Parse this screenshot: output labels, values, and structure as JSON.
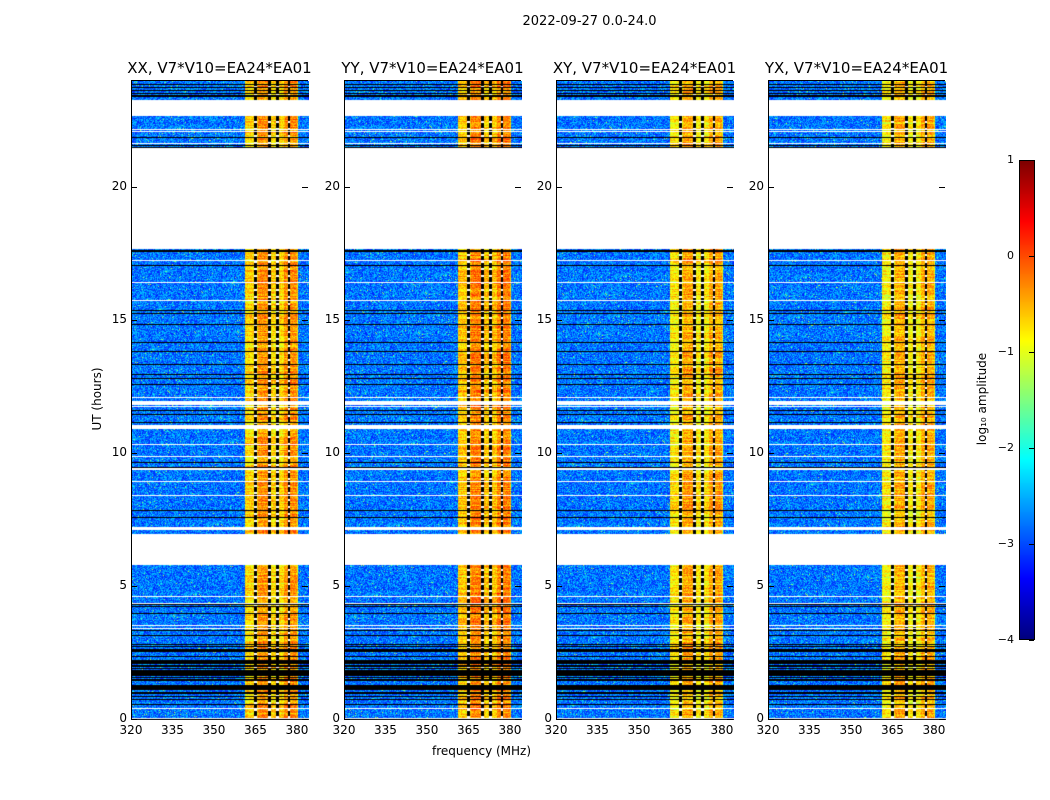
{
  "chart_data": {
    "type": "heatmap",
    "suptitle": "2022-09-27 0.0-24.0",
    "panels": [
      {
        "title": "XX, V7*V10=EA24*EA01",
        "band_level": -0.6
      },
      {
        "title": "YY, V7*V10=EA24*EA01",
        "band_level": -0.5
      },
      {
        "title": "XY, V7*V10=EA24*EA01",
        "band_level": -0.7
      },
      {
        "title": "YX, V7*V10=EA24*EA01",
        "band_level": -0.75
      }
    ],
    "xlabel": "frequency (MHz)",
    "ylabel": "UT (hours)",
    "xlim": [
      320,
      384
    ],
    "ylim": [
      0,
      24
    ],
    "xticks": [
      "320",
      "335",
      "350",
      "365",
      "380"
    ],
    "xtick_values": [
      320,
      335,
      350,
      365,
      380
    ],
    "yticks": [
      "0",
      "5",
      "10",
      "15",
      "20"
    ],
    "ytick_values": [
      0,
      5,
      10,
      15,
      20
    ],
    "background_level": -2.8,
    "bright_band_mhz": [
      360.5,
      380
    ],
    "band_flag_channels_mhz": [
      364.5,
      369.5,
      372.5,
      376.5
    ],
    "blank_ranges_hours": [
      [
        17.7,
        21.5
      ],
      [
        22.7,
        23.3
      ],
      [
        5.85,
        7.0
      ],
      [
        11.85,
        12.0
      ],
      [
        10.95,
        11.1
      ],
      [
        7.15,
        7.25
      ]
    ],
    "flagged_ranges_hours": [
      [
        17.5,
        17.7
      ],
      [
        21.5,
        21.7
      ],
      [
        23.4,
        24.0
      ],
      [
        0.9,
        2.3
      ]
    ],
    "colorbar": {
      "label": "log₁₀ amplitude",
      "colormap": "jet",
      "range": [
        -4,
        1
      ],
      "ticks": [
        "1",
        "0",
        "−1",
        "−2",
        "−3",
        "−4"
      ],
      "tick_values": [
        1,
        0,
        -1,
        -2,
        -3,
        -4
      ]
    }
  }
}
